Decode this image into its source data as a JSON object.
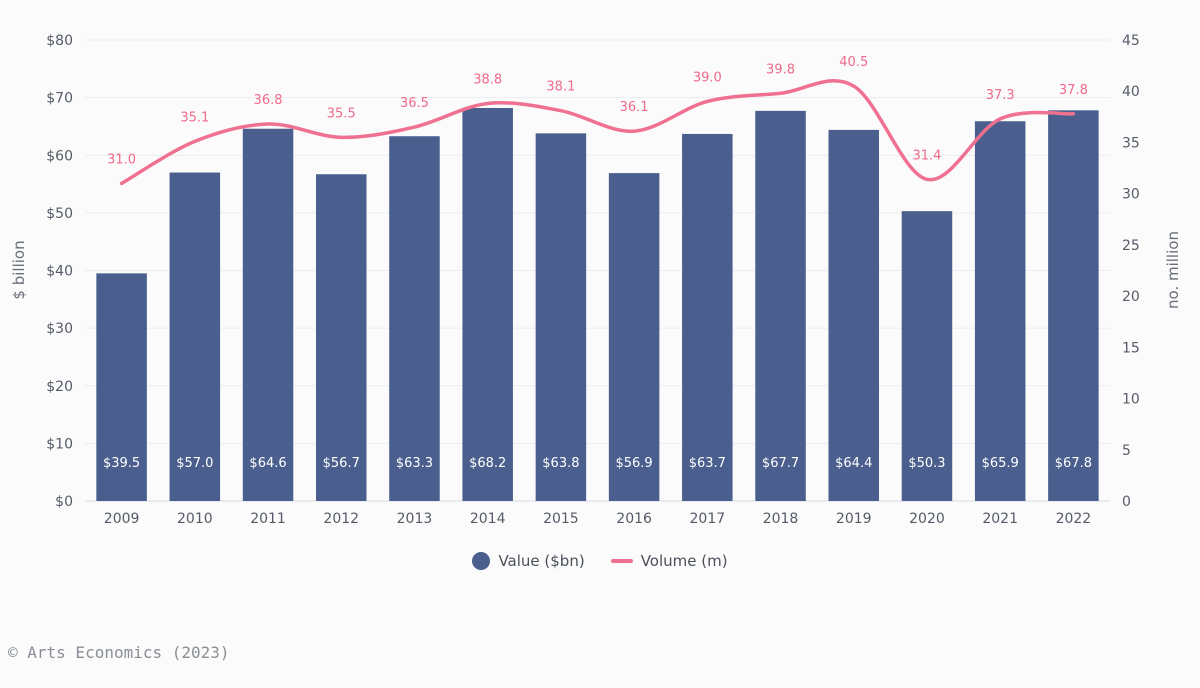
{
  "chart_data": {
    "type": "bar",
    "categories": [
      "2009",
      "2010",
      "2011",
      "2012",
      "2013",
      "2014",
      "2015",
      "2016",
      "2017",
      "2018",
      "2019",
      "2020",
      "2021",
      "2022"
    ],
    "series": [
      {
        "name": "Value ($bn)",
        "type": "bar",
        "axis": "left",
        "values": [
          39.5,
          57.0,
          64.6,
          56.7,
          63.3,
          68.2,
          63.8,
          56.9,
          63.7,
          67.7,
          64.4,
          50.3,
          65.9,
          67.8
        ],
        "labels": [
          "$39.5",
          "$57.0",
          "$64.6",
          "$56.7",
          "$63.3",
          "$68.2",
          "$63.8",
          "$56.9",
          "$63.7",
          "$67.7",
          "$64.4",
          "$50.3",
          "$65.9",
          "$67.8"
        ]
      },
      {
        "name": "Volume (m)",
        "type": "line",
        "axis": "right",
        "values": [
          31.0,
          35.1,
          36.8,
          35.5,
          36.5,
          38.8,
          38.1,
          36.1,
          39.0,
          39.8,
          40.5,
          31.4,
          37.3,
          37.8
        ],
        "labels": [
          "31.0",
          "35.1",
          "36.8",
          "35.5",
          "36.5",
          "38.8",
          "38.1",
          "36.1",
          "39.0",
          "39.8",
          "40.5",
          "31.4",
          "37.3",
          "37.8"
        ]
      }
    ],
    "ylabel": "$ billion",
    "ylabel_right": "no. million",
    "ylim": [
      0,
      80
    ],
    "ylim_right": [
      0,
      45
    ],
    "yticks": [
      "$0",
      "$10",
      "$20",
      "$30",
      "$40",
      "$50",
      "$60",
      "$70",
      "$80"
    ],
    "yticks_right": [
      "0",
      "5",
      "10",
      "15",
      "20",
      "25",
      "30",
      "35",
      "40",
      "45"
    ],
    "grid": true,
    "legend_position": "bottom",
    "colors": {
      "bar": "#4a5f8d",
      "line": "#f07090"
    }
  },
  "footer": "© Arts Economics (2023)"
}
